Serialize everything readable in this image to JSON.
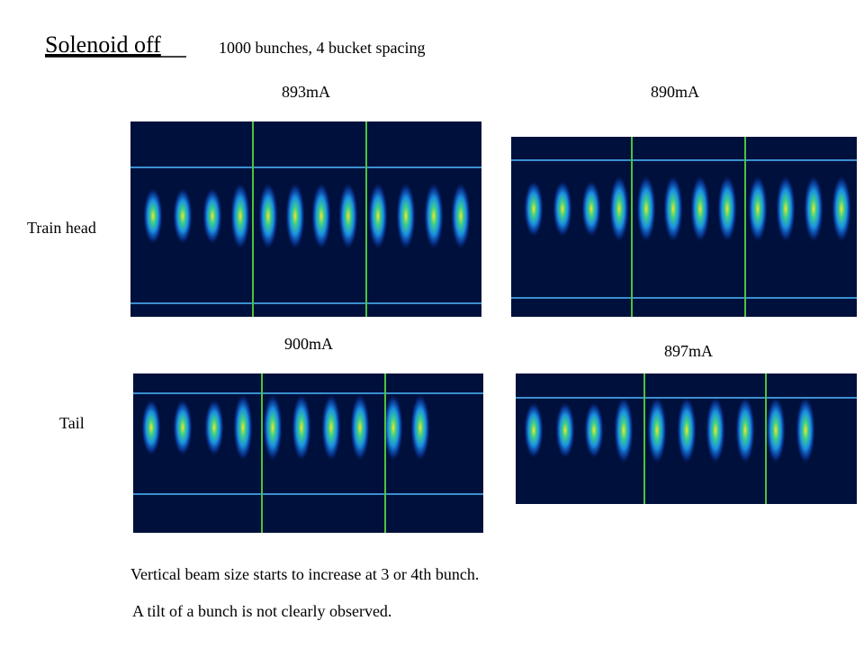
{
  "header": {
    "title": "Solenoid off",
    "subtitle": "1000 bunches, 4 bucket spacing"
  },
  "rows": [
    "Train head",
    "Tail"
  ],
  "images": [
    {
      "label": "893mA"
    },
    {
      "label": "890mA"
    },
    {
      "label": "900mA"
    },
    {
      "label": "897mA"
    }
  ],
  "notes": [
    "Vertical beam size starts to increase at 3 or 4th bunch.",
    "A tilt of a bunch is not clearly observed."
  ]
}
